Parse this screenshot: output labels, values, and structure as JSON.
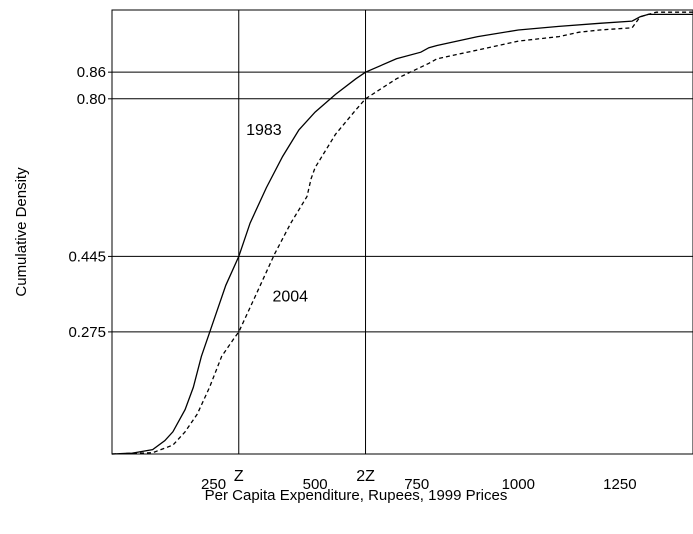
{
  "chart_data": {
    "type": "line",
    "title": "",
    "xlabel": "Per Capita Expenditure, Rupees, 1999 Prices",
    "ylabel": "Cumulative Density",
    "xlim": [
      0,
      1430
    ],
    "ylim": [
      0,
      1.0
    ],
    "grid": false,
    "x_ticks": [
      {
        "value": 250,
        "label": "250"
      },
      {
        "value": 500,
        "label": "500"
      },
      {
        "value": 750,
        "label": "750"
      },
      {
        "value": 1000,
        "label": "1000"
      },
      {
        "value": 1250,
        "label": "1250"
      }
    ],
    "y_ticks": [
      {
        "value": 0.86,
        "label": "0.86"
      },
      {
        "value": 0.8,
        "label": "0.80"
      },
      {
        "value": 0.445,
        "label": "0.445"
      },
      {
        "value": 0.275,
        "label": "0.275"
      }
    ],
    "reference_lines": {
      "vertical": [
        {
          "value": 312,
          "label": "Z"
        },
        {
          "value": 624,
          "label": "2Z"
        }
      ],
      "horizontal": [
        0.86,
        0.8,
        0.445,
        0.275
      ]
    },
    "series": [
      {
        "name": "1983",
        "style": "solid",
        "x": [
          0,
          50,
          100,
          130,
          150,
          180,
          200,
          220,
          250,
          280,
          312,
          340,
          380,
          420,
          460,
          500,
          550,
          600,
          624,
          700,
          760,
          780,
          800,
          900,
          1000,
          1100,
          1200,
          1280,
          1300,
          1320,
          1430
        ],
        "y": [
          0.0,
          0.002,
          0.01,
          0.03,
          0.05,
          0.1,
          0.15,
          0.22,
          0.3,
          0.38,
          0.445,
          0.52,
          0.6,
          0.67,
          0.73,
          0.77,
          0.81,
          0.845,
          0.86,
          0.89,
          0.905,
          0.915,
          0.92,
          0.94,
          0.955,
          0.963,
          0.97,
          0.975,
          0.985,
          0.99,
          0.99
        ]
      },
      {
        "name": "2004",
        "style": "dashed",
        "x": [
          0,
          100,
          150,
          180,
          210,
          240,
          270,
          300,
          312,
          350,
          400,
          440,
          480,
          490,
          500,
          550,
          600,
          624,
          700,
          780,
          800,
          900,
          1000,
          1100,
          1150,
          1200,
          1280,
          1300,
          1320,
          1340,
          1430
        ],
        "y": [
          0.0,
          0.003,
          0.02,
          0.05,
          0.09,
          0.15,
          0.22,
          0.26,
          0.275,
          0.35,
          0.45,
          0.52,
          0.58,
          0.62,
          0.645,
          0.72,
          0.775,
          0.8,
          0.845,
          0.88,
          0.89,
          0.91,
          0.93,
          0.94,
          0.95,
          0.955,
          0.96,
          0.985,
          0.99,
          0.995,
          0.995
        ]
      }
    ],
    "annotations": [
      {
        "text": "1983",
        "x": 330,
        "y": 0.73
      },
      {
        "text": "2004",
        "x": 395,
        "y": 0.355
      }
    ]
  }
}
